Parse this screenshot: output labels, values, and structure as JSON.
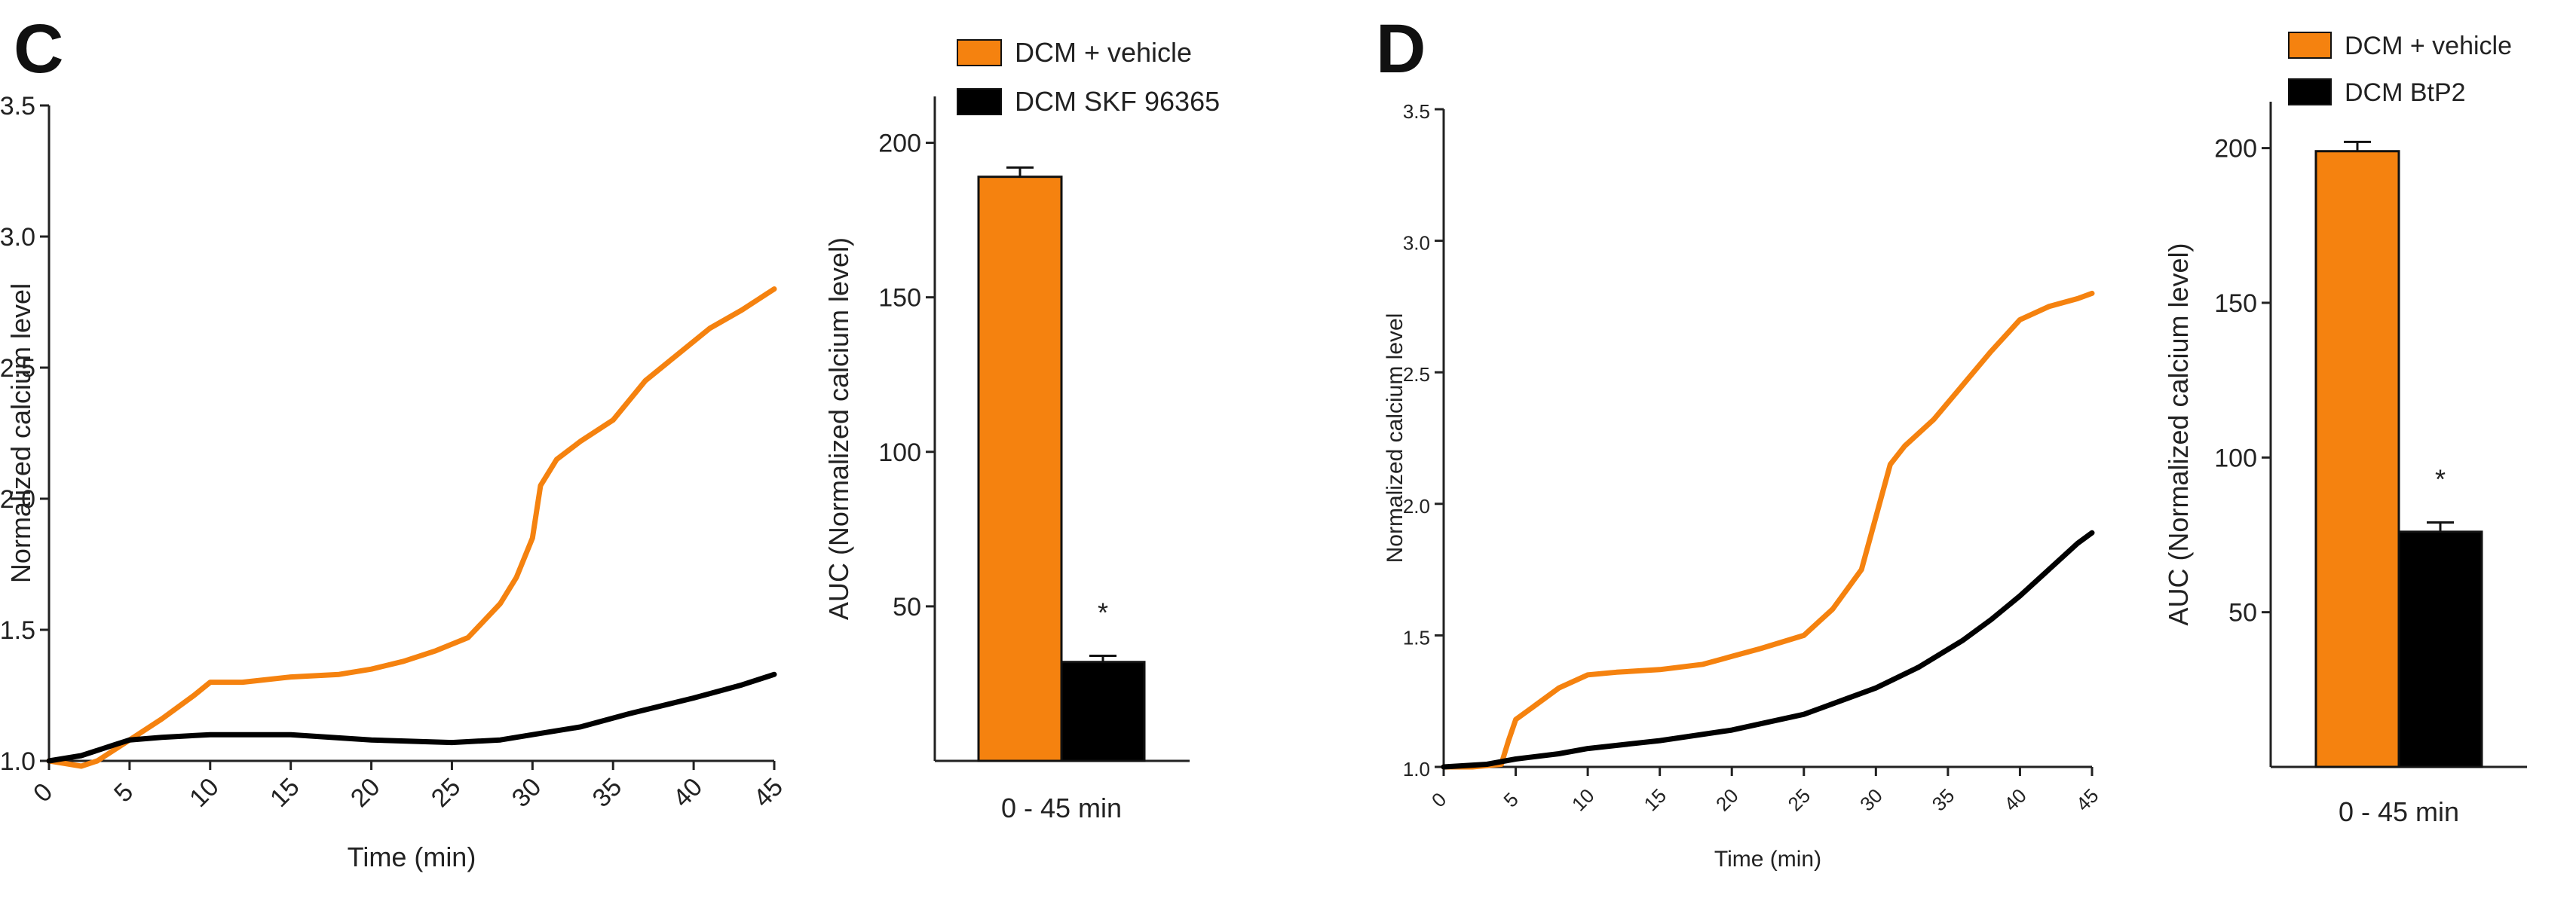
{
  "colors": {
    "vehicle": "#F5820F",
    "treatment": "#000000",
    "axis": "#222222"
  },
  "chart_data": [
    {
      "panel": "C",
      "type": "line",
      "xlabel": "Time (min)",
      "ylabel": "Normalized calcium level",
      "xlim": [
        0,
        45
      ],
      "ylim": [
        1.0,
        3.5
      ],
      "xticks": [
        "0",
        "5",
        "10",
        "15",
        "20",
        "25",
        "30",
        "35",
        "40",
        "45"
      ],
      "yticks": [
        "1.0",
        "1.5",
        "2.0",
        "2.5",
        "3.0",
        "3.5"
      ],
      "series": [
        {
          "name": "DCM + vehicle",
          "color_key": "vehicle",
          "x": [
            0,
            2,
            3,
            5,
            7,
            9,
            10,
            12,
            15,
            18,
            20,
            22,
            24,
            26,
            28,
            29,
            30,
            30.5,
            31.5,
            33,
            35,
            37,
            39,
            41,
            43,
            44,
            45
          ],
          "y": [
            1.0,
            0.98,
            1.0,
            1.08,
            1.16,
            1.25,
            1.3,
            1.3,
            1.32,
            1.33,
            1.35,
            1.38,
            1.42,
            1.47,
            1.6,
            1.7,
            1.85,
            2.05,
            2.15,
            2.22,
            2.3,
            2.45,
            2.55,
            2.65,
            2.72,
            2.76,
            2.8
          ]
        },
        {
          "name": "DCM SKF 96365",
          "color_key": "treatment",
          "x": [
            0,
            2,
            4,
            5,
            7,
            10,
            15,
            20,
            25,
            28,
            30,
            33,
            36,
            40,
            43,
            45
          ],
          "y": [
            1.0,
            1.02,
            1.06,
            1.08,
            1.09,
            1.1,
            1.1,
            1.08,
            1.07,
            1.08,
            1.1,
            1.13,
            1.18,
            1.24,
            1.29,
            1.33
          ]
        }
      ]
    },
    {
      "panel": "C",
      "type": "bar",
      "categories": [
        "0 - 45 min"
      ],
      "ylabel": "AUC  (Normalized calcium level)",
      "ylim": [
        0,
        215
      ],
      "yticks": [
        "50",
        "100",
        "150",
        "200"
      ],
      "series": [
        {
          "name": "DCM + vehicle",
          "color_key": "vehicle",
          "value": 189,
          "error": 3
        },
        {
          "name": "DCM SKF 96365",
          "color_key": "treatment",
          "value": 32,
          "error": 2
        }
      ],
      "annotation": "*",
      "legend": [
        "DCM + vehicle",
        "DCM SKF 96365"
      ]
    },
    {
      "panel": "D",
      "type": "line",
      "xlabel": "Time (min)",
      "ylabel": "Normalized calcium level",
      "xlim": [
        0,
        45
      ],
      "ylim": [
        1.0,
        3.5
      ],
      "xticks": [
        "0",
        "5",
        "10",
        "15",
        "20",
        "25",
        "30",
        "35",
        "40",
        "45"
      ],
      "yticks": [
        "1.0",
        "1.5",
        "2.0",
        "2.5",
        "3.0",
        "3.5"
      ],
      "series": [
        {
          "name": "DCM + vehicle",
          "color_key": "vehicle",
          "x": [
            0,
            2,
            4,
            4.5,
            5,
            6,
            8,
            10,
            12,
            15,
            18,
            20,
            22,
            25,
            27,
            29,
            30,
            31,
            32,
            34,
            36,
            38,
            40,
            42,
            44,
            45
          ],
          "y": [
            1.0,
            1.0,
            1.01,
            1.1,
            1.18,
            1.22,
            1.3,
            1.35,
            1.36,
            1.37,
            1.39,
            1.42,
            1.45,
            1.5,
            1.6,
            1.75,
            1.95,
            2.15,
            2.22,
            2.32,
            2.45,
            2.58,
            2.7,
            2.75,
            2.78,
            2.8
          ]
        },
        {
          "name": "DCM BtP2",
          "color_key": "treatment",
          "x": [
            0,
            3,
            5,
            8,
            10,
            15,
            20,
            25,
            28,
            30,
            33,
            36,
            38,
            40,
            42,
            44,
            45
          ],
          "y": [
            1.0,
            1.01,
            1.03,
            1.05,
            1.07,
            1.1,
            1.14,
            1.2,
            1.26,
            1.3,
            1.38,
            1.48,
            1.56,
            1.65,
            1.75,
            1.85,
            1.89
          ]
        }
      ]
    },
    {
      "panel": "D",
      "type": "bar",
      "categories": [
        "0 - 45 min"
      ],
      "ylabel": "AUC  (Normalized calcium level)",
      "ylim": [
        0,
        215
      ],
      "yticks": [
        "50",
        "100",
        "150",
        "200"
      ],
      "series": [
        {
          "name": "DCM + vehicle",
          "color_key": "vehicle",
          "value": 199,
          "error": 3
        },
        {
          "name": "DCM BtP2",
          "color_key": "treatment",
          "value": 76,
          "error": 3
        }
      ],
      "annotation": "*",
      "legend": [
        "DCM + vehicle",
        "DCM BtP2"
      ]
    }
  ]
}
